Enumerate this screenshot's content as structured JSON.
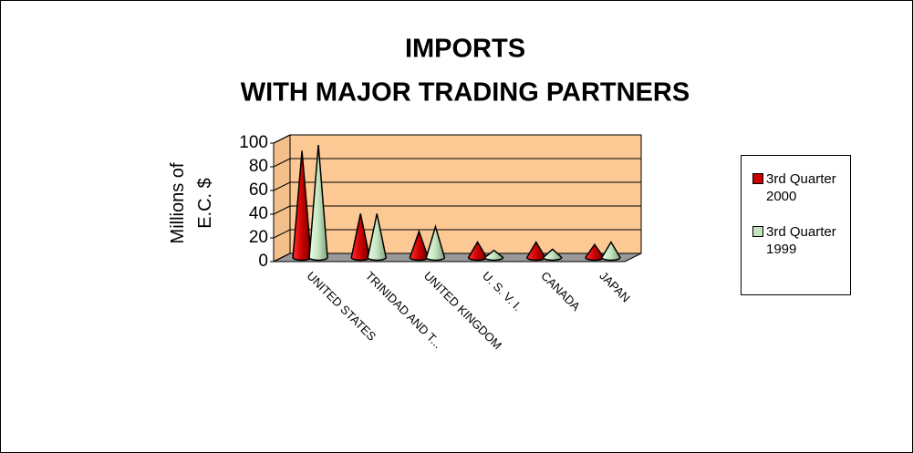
{
  "chart_data": {
    "type": "cone3d",
    "title": "IMPORTS",
    "subtitle": "WITH MAJOR TRADING PARTNERS",
    "y_label": "Millions of E.C. $",
    "categories": [
      "UNITED STATES",
      "TRINIDAD AND T...",
      "UNITED KINGDOM",
      "U. S. V. I.",
      "CANADA",
      "JAPAN"
    ],
    "series": [
      {
        "name": "3rd Quarter 2000",
        "color": "#cc0000",
        "values": [
          90,
          37,
          22,
          13,
          13,
          11
        ]
      },
      {
        "name": "3rd Quarter 1999",
        "color": "#c4e4c0",
        "values": [
          95,
          37,
          26,
          6,
          7,
          13
        ]
      }
    ],
    "ylim": [
      0,
      100
    ],
    "yticks": [
      0,
      20,
      40,
      60,
      80,
      100
    ],
    "grid": true,
    "legend": "right"
  }
}
